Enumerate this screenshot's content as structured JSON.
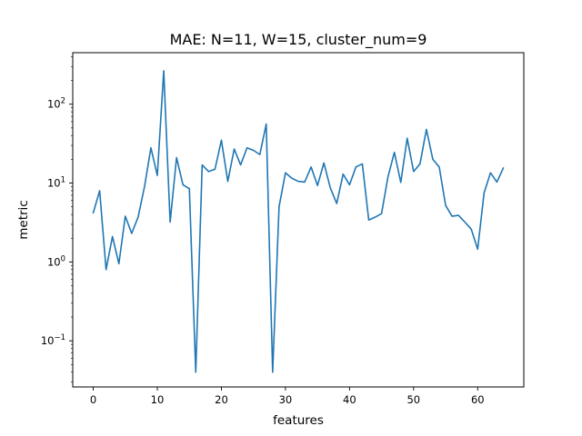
{
  "chart_data": {
    "type": "line",
    "title": "MAE: N=11, W=15, cluster_num=9",
    "xlabel": "features",
    "ylabel": "metric",
    "yscale": "log",
    "xlim": [
      -3.2,
      67.2
    ],
    "ylim": [
      0.026,
      450
    ],
    "x_ticks": [
      0,
      10,
      20,
      30,
      40,
      50,
      60
    ],
    "x_tick_labels": [
      "0",
      "10",
      "20",
      "30",
      "40",
      "50",
      "60"
    ],
    "y_ticks": [
      {
        "value": 0.1,
        "base": "10",
        "exp": "−1"
      },
      {
        "value": 1,
        "base": "10",
        "exp": "0"
      },
      {
        "value": 10,
        "base": "10",
        "exp": "1"
      },
      {
        "value": 100,
        "base": "10",
        "exp": "2"
      }
    ],
    "grid": false,
    "series": [
      {
        "color": "#1f77b4",
        "x": [
          0,
          1,
          2,
          3,
          4,
          5,
          6,
          7,
          8,
          9,
          10,
          11,
          12,
          13,
          14,
          15,
          16,
          17,
          18,
          19,
          20,
          21,
          22,
          23,
          24,
          25,
          26,
          27,
          28,
          29,
          30,
          31,
          32,
          33,
          34,
          35,
          36,
          37,
          38,
          39,
          40,
          41,
          42,
          43,
          44,
          45,
          46,
          47,
          48,
          49,
          50,
          51,
          52,
          53,
          54,
          55,
          56,
          57,
          58,
          59,
          60,
          61,
          62,
          63,
          64
        ],
        "y": [
          4.2,
          8.0,
          0.8,
          2.1,
          0.95,
          3.8,
          2.3,
          3.7,
          9.0,
          28,
          12.5,
          265,
          3.2,
          21,
          9.5,
          8.5,
          0.04,
          17,
          14,
          15,
          35,
          10.5,
          27,
          17,
          28,
          26,
          23,
          56,
          0.04,
          5.0,
          13.5,
          11.5,
          10.5,
          10.3,
          16,
          9.3,
          18,
          8.7,
          5.5,
          13,
          9.5,
          16,
          17.5,
          3.4,
          3.7,
          4.1,
          12,
          24.5,
          10.2,
          37,
          14,
          17.5,
          48,
          20,
          16,
          5.2,
          3.8,
          3.9,
          3.2,
          2.6,
          1.45,
          7.5,
          13.5,
          10.3,
          15.5
        ]
      }
    ]
  }
}
